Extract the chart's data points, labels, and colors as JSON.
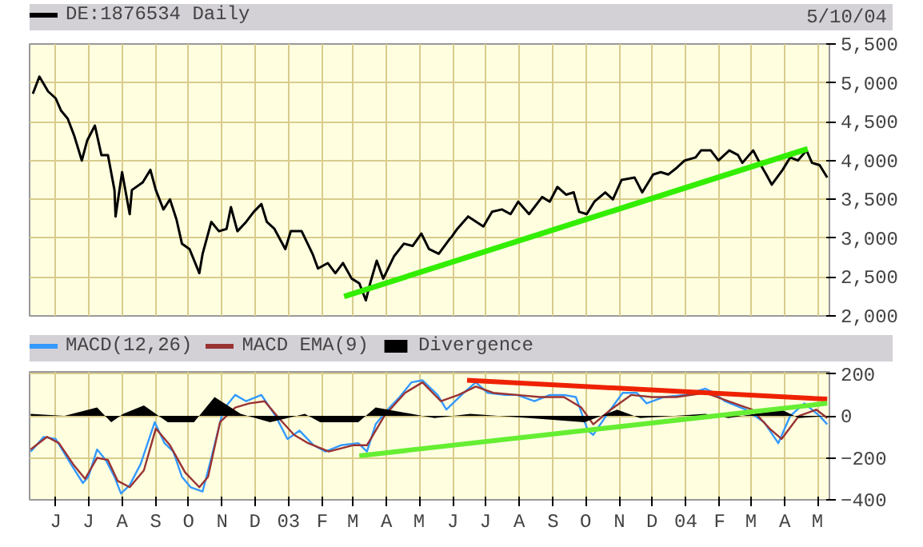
{
  "chart_data": [
    {
      "type": "line",
      "annotations": [
        "5/10/04"
      ],
      "x": [
        "2002-05-11",
        "2002-05-17",
        "2002-05-25",
        "2002-06-01",
        "2002-06-06",
        "2002-06-12",
        "2002-06-18",
        "2002-06-25",
        "2002-06-30",
        "2002-07-07",
        "2002-07-13",
        "2002-07-19",
        "2002-07-25",
        "2002-07-26",
        "2002-08-01",
        "2002-08-08",
        "2002-08-10",
        "2002-08-20",
        "2002-08-27",
        "2002-09-01",
        "2002-09-08",
        "2002-09-14",
        "2002-09-20",
        "2002-09-25",
        "2002-10-02",
        "2002-10-11",
        "2002-10-14",
        "2002-10-22",
        "2002-10-29",
        "2002-11-05",
        "2002-11-09",
        "2002-11-15",
        "2002-11-23",
        "2002-11-30",
        "2002-12-07",
        "2002-12-12",
        "2002-12-19",
        "2002-12-29",
        "2003-01-03",
        "2003-01-13",
        "2003-01-23",
        "2003-01-28",
        "2003-02-06",
        "2003-02-13",
        "2003-02-20",
        "2003-02-28",
        "2003-03-07",
        "2003-03-13",
        "2003-03-17",
        "2003-03-23",
        "2003-03-29",
        "2003-04-08",
        "2003-04-17",
        "2003-04-25",
        "2003-05-03",
        "2003-05-10",
        "2003-05-19",
        "2003-05-29",
        "2003-05-31",
        "2003-06-05",
        "2003-06-15",
        "2003-06-29",
        "2003-07-07",
        "2003-07-16",
        "2003-07-24",
        "2003-07-31",
        "2003-08-10",
        "2003-08-22",
        "2003-08-29",
        "2003-09-05",
        "2003-09-13",
        "2003-09-20",
        "2003-09-25",
        "2003-10-02",
        "2003-10-09",
        "2003-10-19",
        "2003-10-26",
        "2003-11-03",
        "2003-11-15",
        "2003-11-22",
        "2003-12-02",
        "2003-12-09",
        "2003-12-16",
        "2003-12-24",
        "2003-12-31",
        "2004-01-10",
        "2004-01-15",
        "2004-01-24",
        "2004-01-31",
        "2004-02-10",
        "2004-02-18",
        "2004-02-22",
        "2004-03-03",
        "2004-03-10",
        "2004-03-15",
        "2004-03-20",
        "2004-03-30",
        "2004-04-06",
        "2004-04-13",
        "2004-04-21",
        "2004-04-26",
        "2004-05-03",
        "2004-05-10"
      ],
      "series": [
        {
          "name": "DE:1876534 Daily",
          "color": "#000000",
          "values": [
            4860,
            5080,
            4890,
            4800,
            4640,
            4540,
            4320,
            4000,
            4260,
            4450,
            4070,
            4070,
            3620,
            3280,
            3850,
            3310,
            3620,
            3720,
            3880,
            3620,
            3370,
            3500,
            3240,
            2930,
            2860,
            2550,
            2800,
            3210,
            3090,
            3120,
            3400,
            3090,
            3210,
            3340,
            3440,
            3210,
            3120,
            2860,
            3090,
            3090,
            2800,
            2610,
            2680,
            2550,
            2680,
            2480,
            2420,
            2200,
            2420,
            2710,
            2480,
            2770,
            2930,
            2900,
            3060,
            2860,
            2800,
            2990,
            3020,
            3120,
            3280,
            3150,
            3340,
            3370,
            3310,
            3470,
            3310,
            3530,
            3470,
            3660,
            3560,
            3590,
            3340,
            3310,
            3470,
            3590,
            3500,
            3750,
            3780,
            3590,
            3820,
            3850,
            3820,
            3910,
            4000,
            4040,
            4130,
            4130,
            4000,
            4130,
            4070,
            3970,
            4130,
            3940,
            3820,
            3690,
            3880,
            4040,
            4000,
            4130,
            3970,
            3940,
            3780
          ]
        },
        {
          "type": "line",
          "color": "#33ee00",
          "x": [
            "2003-02-21",
            "2004-04-22"
          ],
          "values": [
            2250,
            4150
          ]
        }
      ],
      "xlim": [
        "2002-05-08",
        "2004-05-12"
      ],
      "ylim": [
        2000,
        5500
      ],
      "xticks": [
        {
          "value": "2002-06-01",
          "label": null
        },
        {
          "value": "2002-07-01",
          "label": null
        },
        {
          "value": "2002-08-01",
          "label": null
        },
        {
          "value": "2002-09-01",
          "label": null
        },
        {
          "value": "2002-10-01",
          "label": null
        },
        {
          "value": "2002-11-01",
          "label": null
        },
        {
          "value": "2002-12-01",
          "label": null
        },
        {
          "value": "2003-01-01",
          "label": null
        },
        {
          "value": "2003-02-01",
          "label": null
        },
        {
          "value": "2003-03-01",
          "label": null
        },
        {
          "value": "2003-04-01",
          "label": null
        },
        {
          "value": "2003-05-01",
          "label": null
        },
        {
          "value": "2003-06-01",
          "label": null
        },
        {
          "value": "2003-07-01",
          "label": null
        },
        {
          "value": "2003-08-01",
          "label": null
        },
        {
          "value": "2003-09-01",
          "label": null
        },
        {
          "value": "2003-10-01",
          "label": null
        },
        {
          "value": "2003-11-01",
          "label": null
        },
        {
          "value": "2003-12-01",
          "label": null
        },
        {
          "value": "2004-01-01",
          "label": null
        },
        {
          "value": "2004-02-01",
          "label": null
        },
        {
          "value": "2004-03-01",
          "label": null
        },
        {
          "value": "2004-04-01",
          "label": null
        },
        {
          "value": "2004-05-01",
          "label": null
        }
      ],
      "yticks": [
        {
          "value": 2000,
          "label": "2,000"
        },
        {
          "value": 2500,
          "label": "2,500"
        },
        {
          "value": 3000,
          "label": "3,000"
        },
        {
          "value": 3500,
          "label": "3,500"
        },
        {
          "value": 4000,
          "label": "4,000"
        },
        {
          "value": 4500,
          "label": "4,500"
        },
        {
          "value": 5000,
          "label": "5,000"
        },
        {
          "value": 5500,
          "label": "5,500"
        }
      ],
      "grid": true,
      "legend": "top left",
      "tick_labels": "y"
    },
    {
      "type": "line",
      "series": [
        {
          "name": "MACD(12,26)",
          "color": "#3399ff",
          "x": [
            "2002-05-09",
            "2002-05-21",
            "2002-06-01",
            "2002-06-15",
            "2002-06-26",
            "2002-07-01",
            "2002-07-09",
            "2002-07-17",
            "2002-07-25",
            "2002-07-31",
            "2002-08-08",
            "2002-08-18",
            "2002-08-31",
            "2002-09-09",
            "2002-09-17",
            "2002-09-25",
            "2002-10-03",
            "2002-10-14",
            "2002-10-22",
            "2002-11-02",
            "2002-11-13",
            "2002-11-23",
            "2002-12-07",
            "2002-12-20",
            "2002-12-31",
            "2003-01-11",
            "2003-01-24",
            "2003-02-04",
            "2003-02-18",
            "2003-03-06",
            "2003-03-14",
            "2003-03-22",
            "2003-04-02",
            "2003-04-13",
            "2003-04-24",
            "2003-05-04",
            "2003-05-18",
            "2003-05-26",
            "2003-06-11",
            "2003-06-22",
            "2003-07-03",
            "2003-07-19",
            "2003-07-30",
            "2003-08-15",
            "2003-08-29",
            "2003-09-11",
            "2003-09-22",
            "2003-10-03",
            "2003-10-08",
            "2003-10-21",
            "2003-11-04",
            "2003-11-17",
            "2003-11-26",
            "2003-12-12",
            "2003-12-31",
            "2004-01-19",
            "2004-01-27",
            "2004-02-06",
            "2004-02-25",
            "2004-03-13",
            "2004-03-26",
            "2004-04-06",
            "2004-04-19",
            "2004-05-03",
            "2004-05-10"
          ],
          "values": [
            -170,
            -100,
            -110,
            -230,
            -320,
            -290,
            -160,
            -210,
            -290,
            -370,
            -330,
            -230,
            -30,
            -130,
            -170,
            -290,
            -340,
            -360,
            -200,
            30,
            100,
            70,
            100,
            0,
            -110,
            -70,
            -140,
            -170,
            -140,
            -130,
            -170,
            -40,
            30,
            90,
            160,
            170,
            100,
            30,
            110,
            160,
            110,
            100,
            100,
            70,
            100,
            100,
            90,
            -70,
            -90,
            10,
            110,
            110,
            60,
            90,
            100,
            130,
            110,
            70,
            30,
            -30,
            -130,
            0,
            60,
            0,
            -40
          ]
        },
        {
          "name": "MACD EMA(9)",
          "color": "#993333",
          "x": [
            "2002-05-09",
            "2002-05-24",
            "2002-06-04",
            "2002-06-17",
            "2002-06-28",
            "2002-07-09",
            "2002-07-19",
            "2002-07-28",
            "2002-08-08",
            "2002-08-21",
            "2002-09-01",
            "2002-09-14",
            "2002-09-28",
            "2002-10-11",
            "2002-10-19",
            "2002-10-30",
            "2002-11-13",
            "2002-11-26",
            "2002-12-10",
            "2002-12-23",
            "2003-01-06",
            "2003-01-19",
            "2003-02-07",
            "2003-03-01",
            "2003-03-14",
            "2003-03-30",
            "2003-04-18",
            "2003-05-04",
            "2003-05-21",
            "2003-06-06",
            "2003-06-22",
            "2003-07-08",
            "2003-07-30",
            "2003-08-20",
            "2003-09-11",
            "2003-09-27",
            "2003-10-08",
            "2003-10-24",
            "2003-11-12",
            "2003-12-01",
            "2003-12-23",
            "2004-01-19",
            "2004-02-09",
            "2004-03-02",
            "2004-03-18",
            "2004-03-29",
            "2004-04-14",
            "2004-04-30",
            "2004-05-10"
          ],
          "values": [
            -160,
            -100,
            -130,
            -230,
            -300,
            -200,
            -210,
            -310,
            -340,
            -260,
            -60,
            -140,
            -270,
            -340,
            -290,
            -30,
            40,
            60,
            70,
            -10,
            -90,
            -130,
            -170,
            -140,
            -140,
            0,
            110,
            160,
            70,
            100,
            140,
            110,
            100,
            90,
            90,
            40,
            -40,
            30,
            100,
            90,
            90,
            110,
            70,
            30,
            -60,
            -110,
            0,
            30,
            -10
          ]
        },
        {
          "name": "Divergence",
          "type": "area",
          "color": "#000000",
          "x": [
            "2002-05-09",
            "2002-06-09",
            "2002-07-09",
            "2002-07-22",
            "2002-08-02",
            "2002-08-21",
            "2002-09-12",
            "2002-10-06",
            "2002-10-25",
            "2002-11-18",
            "2002-12-15",
            "2003-01-16",
            "2003-01-30",
            "2003-03-06",
            "2003-03-22",
            "2003-04-24",
            "2003-05-15",
            "2003-06-17",
            "2003-08-10",
            "2003-09-30",
            "2003-10-30",
            "2003-11-20",
            "2004-01-19",
            "2004-02-09",
            "2004-03-29",
            "2004-04-14",
            "2004-05-10"
          ],
          "values": [
            10,
            0,
            40,
            -30,
            10,
            50,
            -30,
            -30,
            90,
            10,
            -30,
            10,
            -30,
            -30,
            40,
            10,
            -10,
            10,
            -10,
            -30,
            30,
            -10,
            10,
            -10,
            30,
            -10,
            0
          ]
        },
        {
          "type": "line",
          "color": "#ee2200",
          "x": [
            "2003-06-14",
            "2004-05-10"
          ],
          "values": [
            170,
            80
          ]
        },
        {
          "type": "line",
          "color": "#66ee33",
          "x": [
            "2003-03-07",
            "2004-05-10"
          ],
          "values": [
            -190,
            60
          ]
        }
      ],
      "xlim": [
        "2002-05-08",
        "2004-05-12"
      ],
      "ylim": [
        -400,
        210
      ],
      "xticks": [
        {
          "value": "2002-06-01",
          "label": "J"
        },
        {
          "value": "2002-07-01",
          "label": "J"
        },
        {
          "value": "2002-08-01",
          "label": "A"
        },
        {
          "value": "2002-09-01",
          "label": "S"
        },
        {
          "value": "2002-10-01",
          "label": "O"
        },
        {
          "value": "2002-11-01",
          "label": "N"
        },
        {
          "value": "2002-12-01",
          "label": "D"
        },
        {
          "value": "2003-01-01",
          "label": "03"
        },
        {
          "value": "2003-02-01",
          "label": "F"
        },
        {
          "value": "2003-03-01",
          "label": "M"
        },
        {
          "value": "2003-04-01",
          "label": "A"
        },
        {
          "value": "2003-05-01",
          "label": "M"
        },
        {
          "value": "2003-06-01",
          "label": "J"
        },
        {
          "value": "2003-07-01",
          "label": "J"
        },
        {
          "value": "2003-08-01",
          "label": "A"
        },
        {
          "value": "2003-09-01",
          "label": "S"
        },
        {
          "value": "2003-10-01",
          "label": "O"
        },
        {
          "value": "2003-11-01",
          "label": "N"
        },
        {
          "value": "2003-12-01",
          "label": "D"
        },
        {
          "value": "2004-01-01",
          "label": "04"
        },
        {
          "value": "2004-02-01",
          "label": "F"
        },
        {
          "value": "2004-03-01",
          "label": "M"
        },
        {
          "value": "2004-04-01",
          "label": "A"
        },
        {
          "value": "2004-05-01",
          "label": "M"
        }
      ],
      "yticks": [
        -400,
        -200,
        0,
        200
      ],
      "grid": true,
      "legend": "top left"
    }
  ]
}
